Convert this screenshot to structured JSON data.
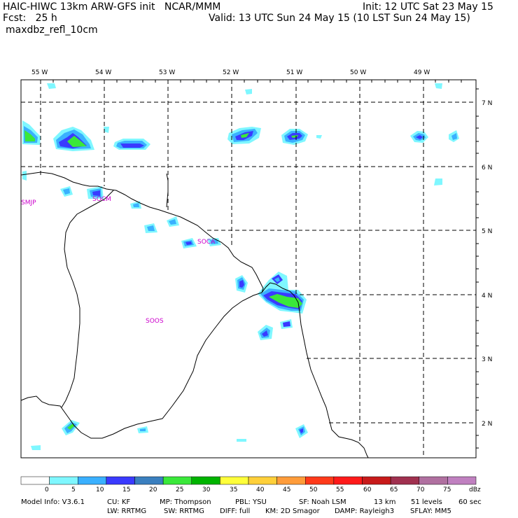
{
  "header": {
    "title": "HAIC-HIWC 13km ARW-GFS init   NCAR/MMM",
    "fcst": "Fcst:   25 h",
    "field": "maxdbz_refl_10cm",
    "init": "Init: 12 UTC Sat 23 May 15",
    "valid": "Valid: 13 UTC Sun 24 May 15 (10 LST Sun 24 May 15)"
  },
  "map": {
    "longitudes": [
      "55 W",
      "54 W",
      "53 W",
      "52 W",
      "51 W",
      "50 W",
      "49 W"
    ],
    "latitudes": [
      "7 N",
      "6 N",
      "5 N",
      "4 N",
      "3 N",
      "2 N"
    ],
    "stations": [
      "SMJP",
      "SOCM",
      "SOCA",
      "SOOS"
    ]
  },
  "colorbar": {
    "unit": "dBz",
    "ticks": [
      "0",
      "5",
      "10",
      "15",
      "20",
      "25",
      "30",
      "35",
      "40",
      "45",
      "50",
      "55",
      "60",
      "65",
      "70",
      "75"
    ],
    "colors": [
      "#ffffff",
      "#7ff7ff",
      "#3ab0ff",
      "#3a3aff",
      "#3a7fbf",
      "#3ae83a",
      "#00b400",
      "#ffff3a",
      "#ffd03a",
      "#ff9c3a",
      "#ff3a1a",
      "#ff1a1a",
      "#c81a1a",
      "#a0304f",
      "#b070a0",
      "#c080c0"
    ]
  },
  "footer": {
    "line1": {
      "model": "Model Info: V3.6.1",
      "cu": "CU: KF",
      "mp": "MP: Thompson",
      "pbl": "PBL: YSU",
      "sf": "SF: Noah LSM",
      "res": "13 km",
      "levels": "51 levels",
      "dt": "60 sec"
    },
    "line2": {
      "lw": "LW: RRTMG",
      "sw": "SW: RRTMG",
      "diff": "DIFF: full",
      "km": "KM: 2D Smagor",
      "damp": "DAMP: Rayleigh3",
      "sflay": "SFLAY: MM5"
    }
  }
}
